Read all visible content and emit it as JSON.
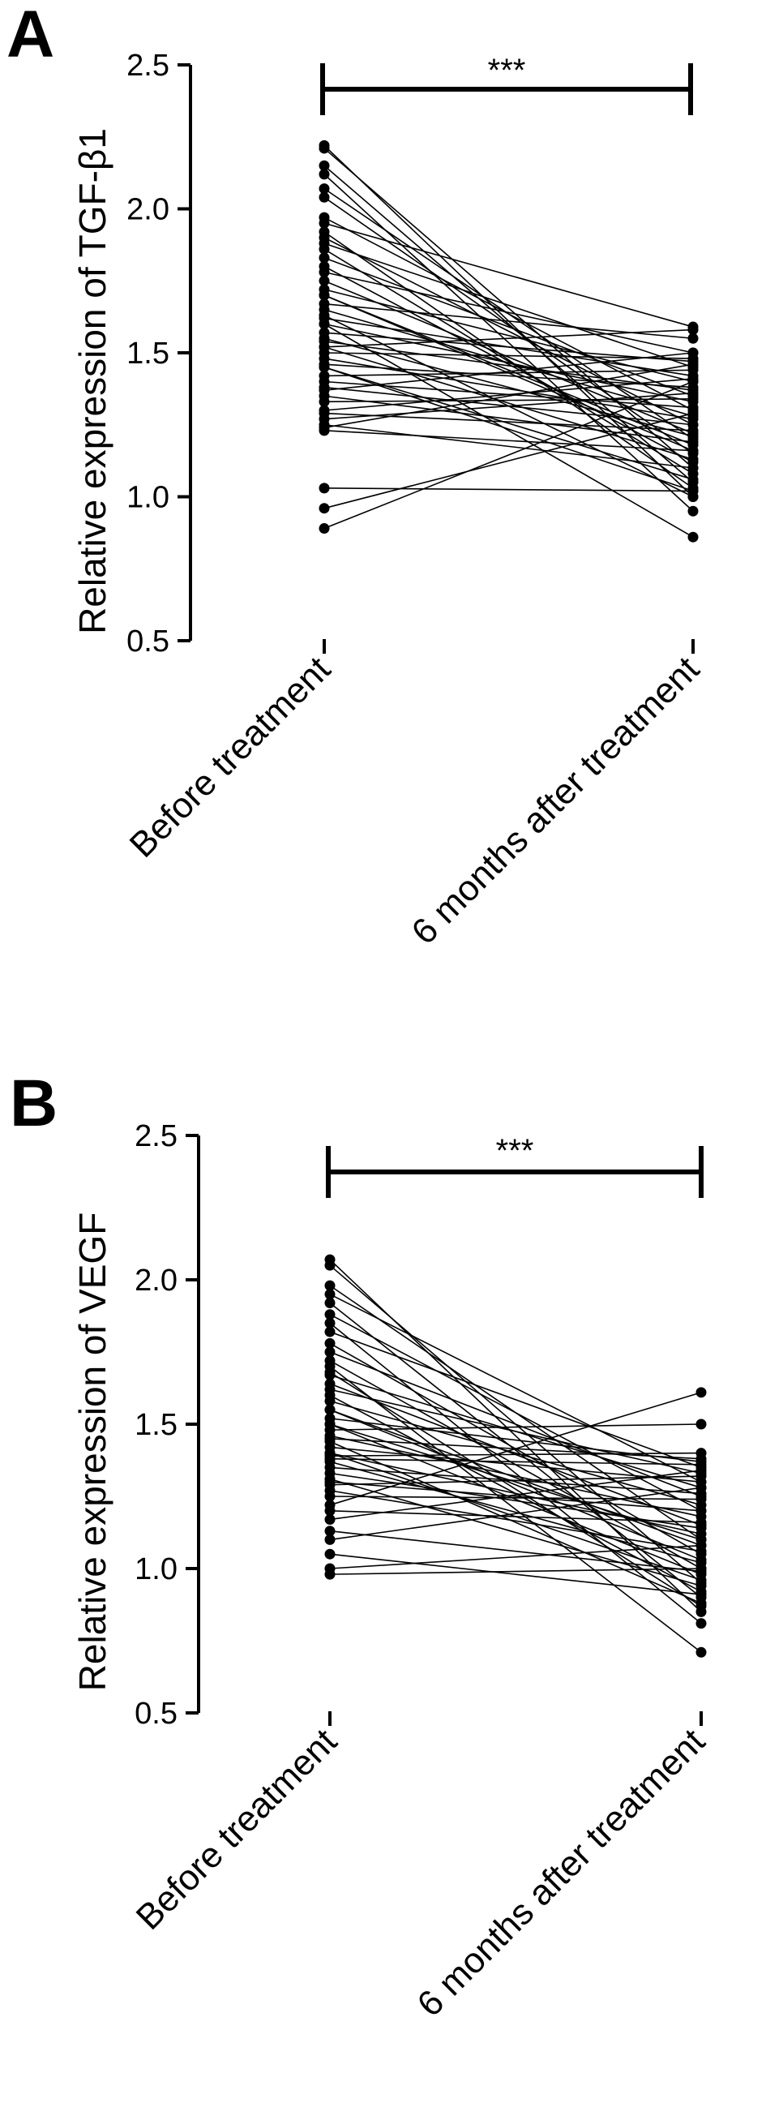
{
  "chart_data": [
    {
      "type": "line",
      "panel_label": "A",
      "ylabel": "Relative expression of TGF-β1",
      "xlabel": "",
      "categories": [
        "Before treatment",
        "6 months after treatment"
      ],
      "ylim": [
        0.5,
        2.5
      ],
      "yticks": [
        "0.5",
        "1.0",
        "1.5",
        "2.0",
        "2.5"
      ],
      "grid": false,
      "significance": "***",
      "pairs": [
        [
          2.22,
          1.0
        ],
        [
          2.21,
          1.1
        ],
        [
          2.15,
          1.05
        ],
        [
          2.12,
          0.95
        ],
        [
          2.07,
          1.2
        ],
        [
          2.04,
          1.15
        ],
        [
          1.97,
          1.3
        ],
        [
          1.95,
          1.59
        ],
        [
          1.92,
          1.03
        ],
        [
          1.9,
          1.25
        ],
        [
          1.88,
          1.45
        ],
        [
          1.86,
          1.08
        ],
        [
          1.83,
          1.35
        ],
        [
          1.8,
          1.12
        ],
        [
          1.78,
          1.5
        ],
        [
          1.75,
          1.22
        ],
        [
          1.72,
          1.4
        ],
        [
          1.7,
          1.18
        ],
        [
          1.67,
          1.55
        ],
        [
          1.65,
          1.28
        ],
        [
          1.63,
          1.0
        ],
        [
          1.62,
          1.42
        ],
        [
          1.6,
          1.33
        ],
        [
          1.57,
          1.47
        ],
        [
          1.55,
          1.21
        ],
        [
          1.54,
          1.37
        ],
        [
          1.52,
          1.13
        ],
        [
          1.5,
          1.48
        ],
        [
          1.48,
          1.27
        ],
        [
          1.46,
          1.38
        ],
        [
          1.45,
          1.06
        ],
        [
          1.42,
          1.44
        ],
        [
          1.4,
          1.31
        ],
        [
          1.38,
          1.25
        ],
        [
          1.37,
          1.5
        ],
        [
          1.35,
          1.19
        ],
        [
          1.33,
          1.34
        ],
        [
          1.3,
          1.41
        ],
        [
          1.29,
          1.23
        ],
        [
          1.27,
          1.36
        ],
        [
          1.25,
          1.1
        ],
        [
          1.24,
          1.46
        ],
        [
          1.23,
          1.16
        ],
        [
          1.03,
          1.02
        ],
        [
          0.96,
          1.29
        ],
        [
          0.89,
          1.4
        ],
        [
          1.6,
          0.86
        ],
        [
          1.52,
          1.58
        ],
        [
          1.7,
          1.16
        ],
        [
          1.45,
          1.02
        ]
      ]
    },
    {
      "type": "line",
      "panel_label": "B",
      "ylabel": "Relative expression of VEGF",
      "xlabel": "",
      "categories": [
        "Before treatment",
        "6 months after treatment"
      ],
      "ylim": [
        0.5,
        2.5
      ],
      "yticks": [
        "0.5",
        "1.0",
        "1.5",
        "2.0",
        "2.5"
      ],
      "grid": false,
      "significance": "***",
      "pairs": [
        [
          2.07,
          0.85
        ],
        [
          2.05,
          0.95
        ],
        [
          1.98,
          1.1
        ],
        [
          1.95,
          1.3
        ],
        [
          1.92,
          0.9
        ],
        [
          1.88,
          1.2
        ],
        [
          1.85,
          0.81
        ],
        [
          1.82,
          1.35
        ],
        [
          1.78,
          1.05
        ],
        [
          1.75,
          1.25
        ],
        [
          1.72,
          1.0
        ],
        [
          1.7,
          0.71
        ],
        [
          1.67,
          1.28
        ],
        [
          1.64,
          1.15
        ],
        [
          1.62,
          1.33
        ],
        [
          1.6,
          0.92
        ],
        [
          1.58,
          1.22
        ],
        [
          1.55,
          1.08
        ],
        [
          1.52,
          1.37
        ],
        [
          1.5,
          0.98
        ],
        [
          1.48,
          1.5
        ],
        [
          1.46,
          1.18
        ],
        [
          1.44,
          0.88
        ],
        [
          1.42,
          1.3
        ],
        [
          1.4,
          1.12
        ],
        [
          1.39,
          1.4
        ],
        [
          1.38,
          1.36
        ],
        [
          1.37,
          1.02
        ],
        [
          1.35,
          1.26
        ],
        [
          1.33,
          1.14
        ],
        [
          1.31,
          0.94
        ],
        [
          1.29,
          1.32
        ],
        [
          1.27,
          1.06
        ],
        [
          1.25,
          1.24
        ],
        [
          1.22,
          1.61
        ],
        [
          1.2,
          1.16
        ],
        [
          1.17,
          1.34
        ],
        [
          1.13,
          0.99
        ],
        [
          1.1,
          1.28
        ],
        [
          1.05,
          0.91
        ],
        [
          1.0,
          1.08
        ],
        [
          0.98,
          1.0
        ],
        [
          1.45,
          1.38
        ],
        [
          1.55,
          1.03
        ],
        [
          1.68,
          0.87
        ],
        [
          1.3,
          1.2
        ],
        [
          1.5,
          1.1
        ],
        [
          1.4,
          0.96
        ]
      ]
    }
  ]
}
